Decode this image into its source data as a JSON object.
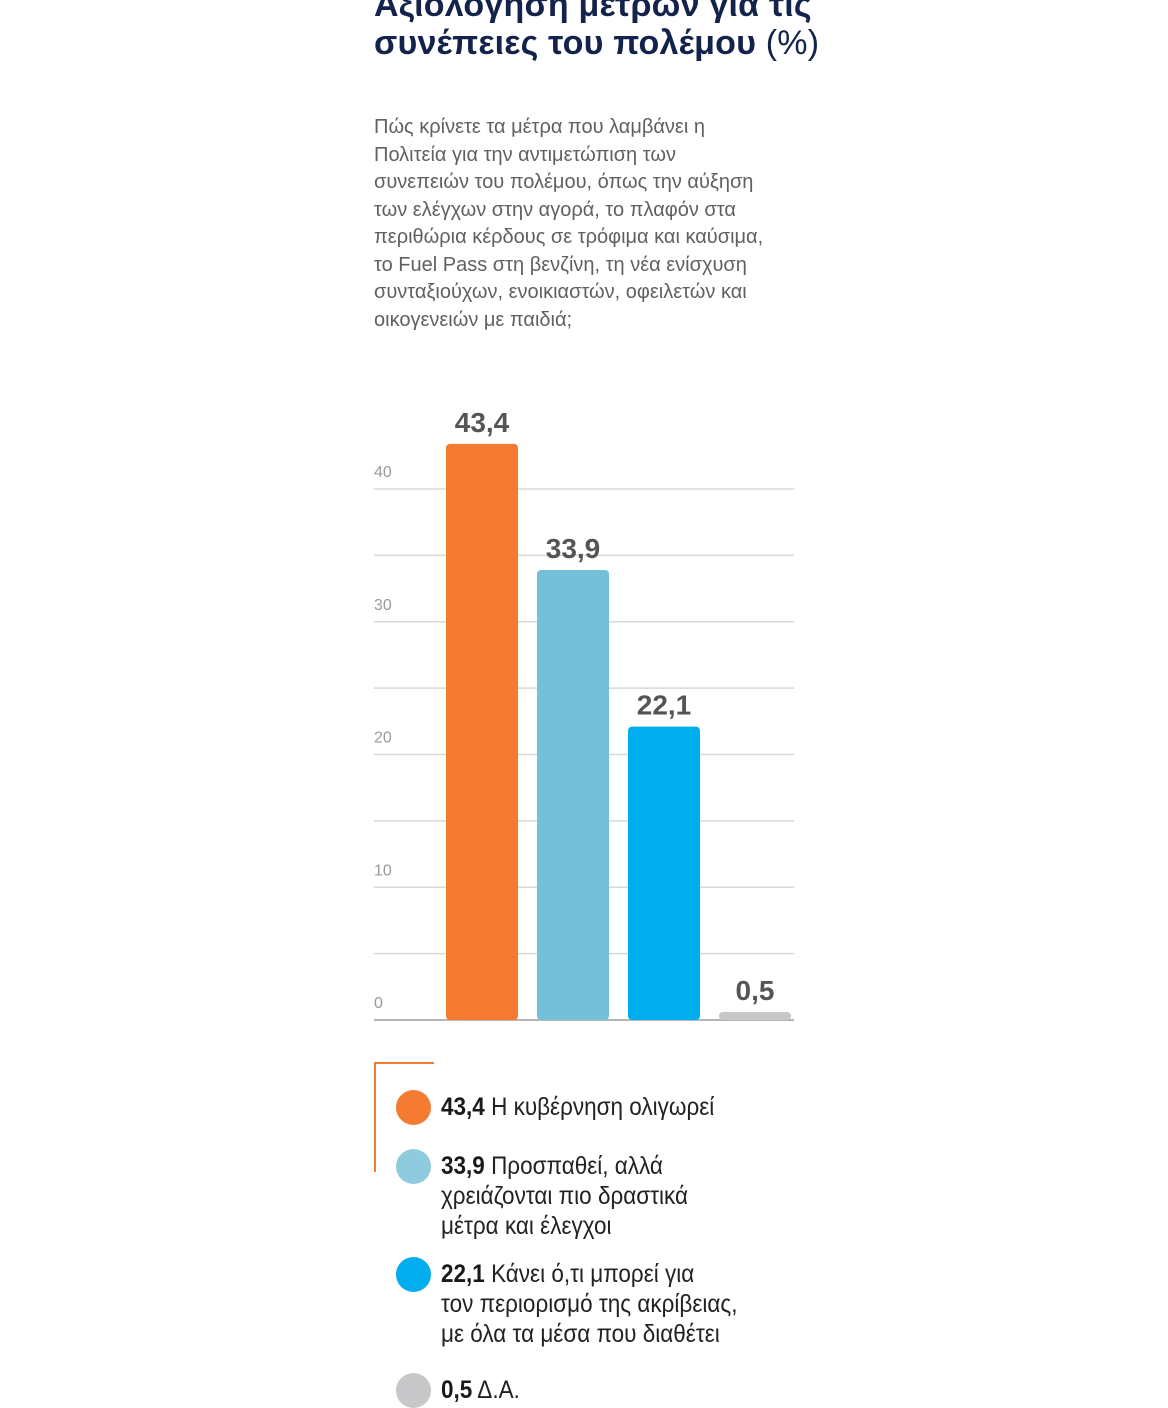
{
  "header": {
    "title": "Αξιολόγηση μέτρων για τις συνέπειες του πολέμου",
    "title_unit": "(%)",
    "question": "Πώς κρίνετε τα μέτρα που λαμβάνει η Πολιτεία για την αντιμετώπιση των συνεπειών του πολέμου, όπως την αύξηση των ελέγχων στην αγορά, το πλαφόν στα περιθώρια κέρδους σε τρόφιμα και καύσιμα, το Fuel Pass στη βενζίνη, τη νέα ενίσχυση συνταξιούχων, ενοικιαστών, οφειλετών και οικογενειών με παιδιά;"
  },
  "chart_data": {
    "type": "bar",
    "title": "Αξιολόγηση μέτρων για τις συνέπειες του πολέμου (%)",
    "categories": [
      "Η κυβέρνηση ολιγωρεί",
      "Προσπαθεί, αλλά χρειάζονται πιο δραστικά μέτρα και έλεγχοι",
      "Κάνει ό,τι μπορεί για τον περιορισμό της ακρίβειας, με όλα τα μέσα που διαθέτει",
      "Δ.Α."
    ],
    "values": [
      43.4,
      33.9,
      22.1,
      0.5
    ],
    "value_labels": [
      "43,4",
      "33,9",
      "22,1",
      "0,5"
    ],
    "colors": [
      "#f47b31",
      "#74c0d8",
      "#00aeef",
      "#c7c7c9"
    ],
    "ylim": [
      0,
      40
    ],
    "yticks": [
      0,
      10,
      20,
      30,
      40
    ],
    "ytick_labels": [
      "0",
      "10",
      "20",
      "30",
      "40"
    ],
    "grid": true,
    "xlabel": "",
    "ylabel": ""
  },
  "legend": {
    "items": [
      {
        "value": "43,4",
        "label": "Η κυβέρνηση ολιγωρεί",
        "color": "#f47b31"
      },
      {
        "value": "33,9",
        "label": "Προσπαθεί, αλλά\nχρειάζονται πιο δραστικά\nμέτρα και έλεγχοι",
        "color": "#8ecbde"
      },
      {
        "value": "22,1",
        "label": "Κάνει ό,τι μπορεί για\nτον περιορισμό της ακρίβειας,\nμε όλα τα μέσα που διαθέτει",
        "color": "#00aeef"
      },
      {
        "value": "0,5",
        "label": "Δ.Α.",
        "color": "#c7c7c9"
      }
    ]
  }
}
